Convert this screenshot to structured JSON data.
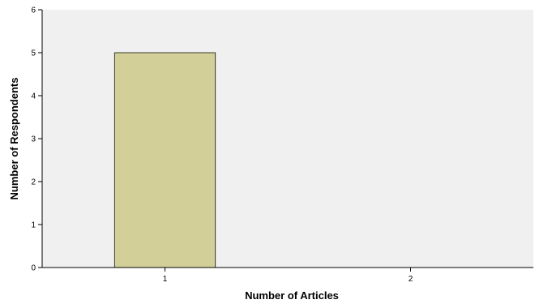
{
  "chart_data": {
    "type": "bar",
    "categories": [
      "1",
      "2"
    ],
    "values": [
      5,
      0
    ],
    "title": "",
    "xlabel": "Number of Articles",
    "ylabel": "Number of Respondents",
    "ylim": [
      0,
      6
    ],
    "yticks": [
      "0",
      "1",
      "2",
      "3",
      "4",
      "5",
      "6"
    ],
    "grid": false,
    "legend": "none",
    "colors": {
      "bar_fill": "#d3cf98",
      "bar_stroke": "#3a3a2a",
      "plot_background": "#f0f0f0",
      "axis": "#000000"
    }
  }
}
